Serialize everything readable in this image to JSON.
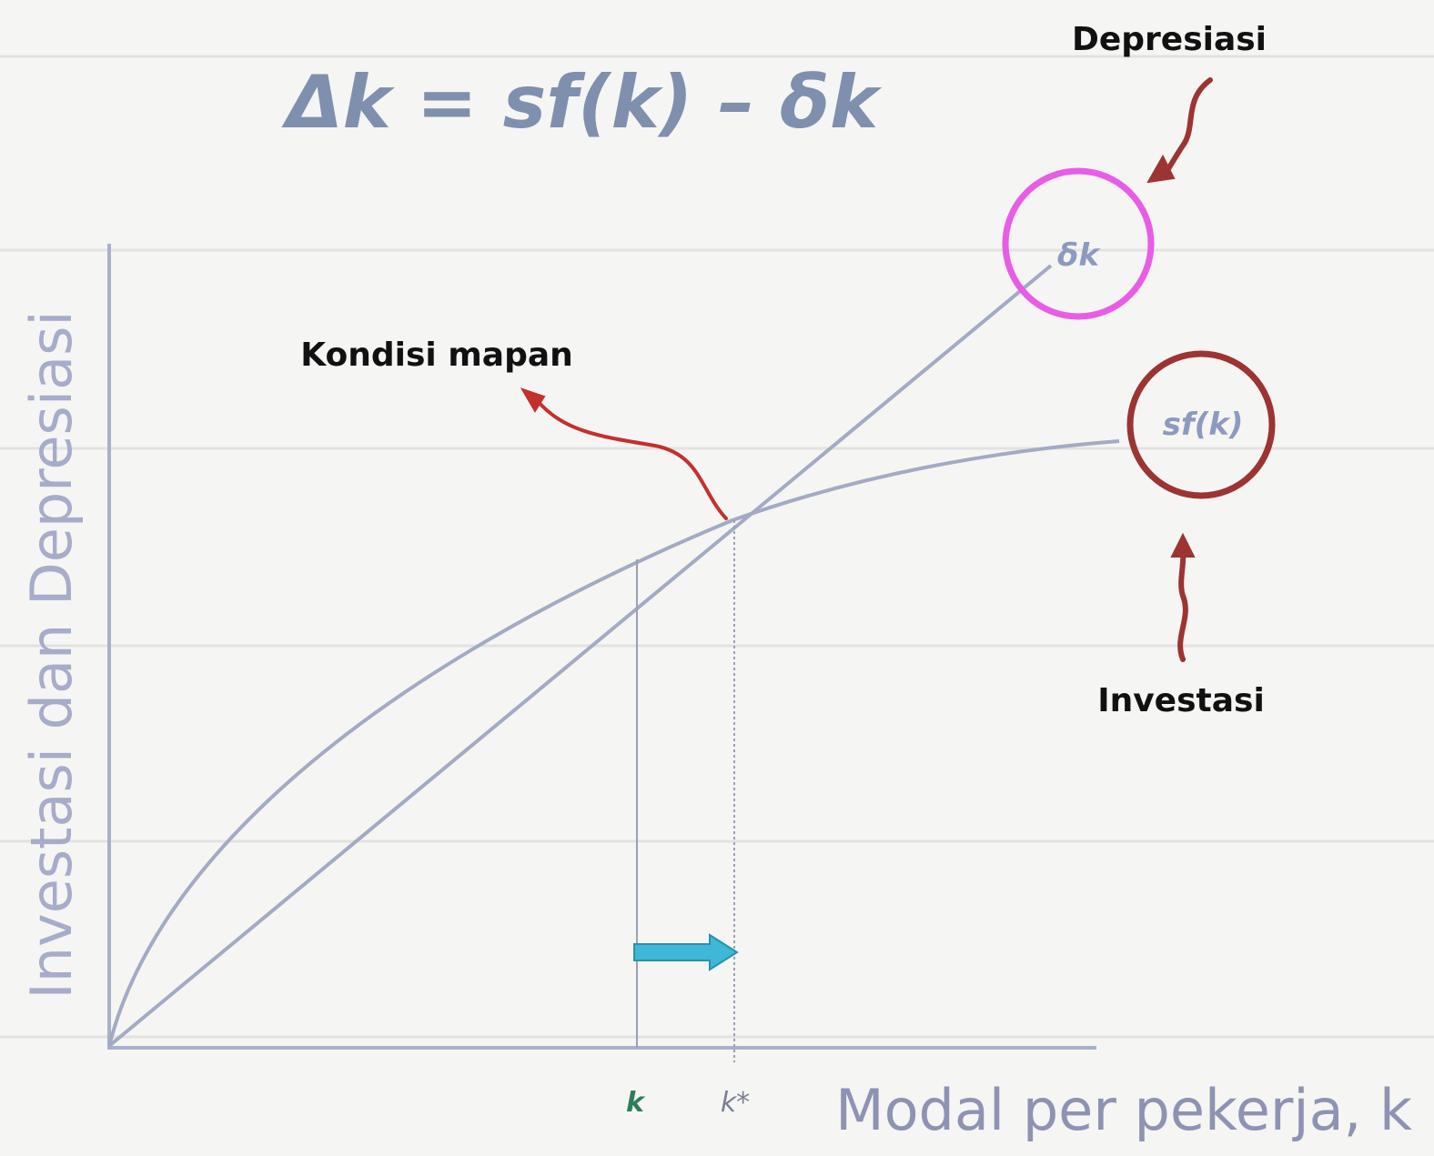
{
  "title": "Δk = sf(k) – δk",
  "annotations": {
    "depreciation": "Depresiasi",
    "steady_state": "Kondisi mapan",
    "investment": "Investasi"
  },
  "curves": {
    "depreciation_line": "δk",
    "investment_curve": "sf(k)"
  },
  "axes": {
    "y_label": "Investasi dan Depresiasi",
    "x_label": "Modal per pekerja, k"
  },
  "x_marks": {
    "k": "k",
    "k_star": "k*"
  }
}
